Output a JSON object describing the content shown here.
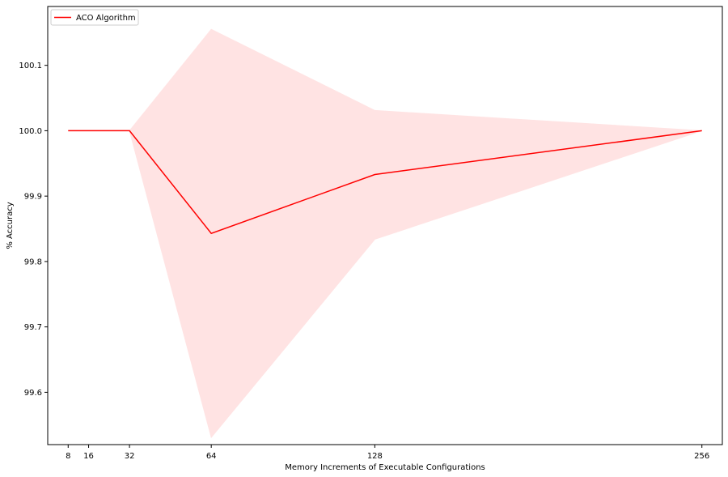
{
  "chart_data": {
    "type": "line",
    "title": "",
    "xlabel": "Memory Increments of Executable Configurations",
    "ylabel": "% Accuracy",
    "x": [
      8,
      16,
      32,
      64,
      128,
      256
    ],
    "x_ticks": [
      8,
      16,
      32,
      64,
      128,
      256
    ],
    "y_ticks": [
      "99.6",
      "99.7",
      "99.8",
      "99.9",
      "100.0",
      "100.1"
    ],
    "xlim": [
      0,
      264
    ],
    "ylim": [
      99.52,
      100.19
    ],
    "grid": false,
    "legend_position": "top-left",
    "series": [
      {
        "name": "ACO Algorithm",
        "color": "#ff0000",
        "mean": [
          100.0,
          100.0,
          100.0,
          99.843,
          99.933,
          100.0
        ],
        "upper": [
          100.0,
          100.0,
          100.0,
          100.155,
          100.031,
          100.0
        ],
        "lower": [
          100.0,
          100.0,
          100.0,
          99.531,
          99.834,
          100.0
        ],
        "band_color": "#ffe3e3"
      }
    ]
  }
}
